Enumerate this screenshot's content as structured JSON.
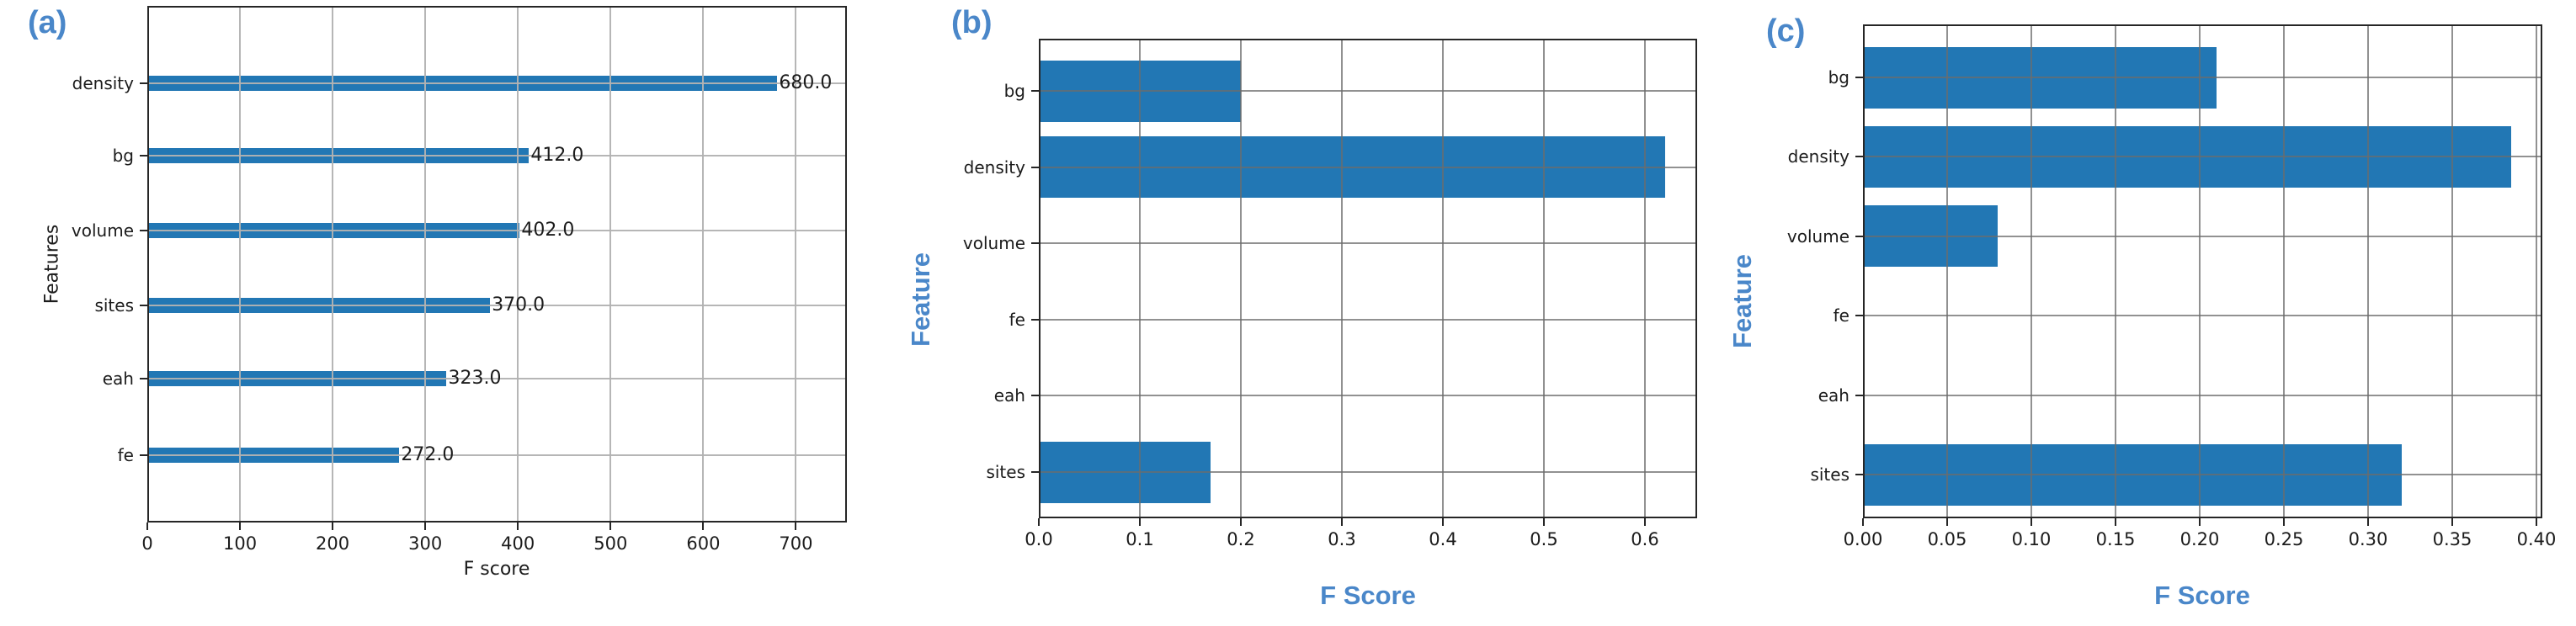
{
  "figure": {
    "background": "#ffffff",
    "colors": {
      "bar": "#2277b4",
      "accent_label": "#4a87c9",
      "axis_text": "#1c1c1c",
      "grid_a": "rgba(178,178,178,0.95)",
      "grid_bc": "rgba(108,108,108,0.75)"
    }
  },
  "chart_data": [
    {
      "id": "a",
      "type": "bar",
      "orientation": "horizontal",
      "panel_label": "(a)",
      "title": "",
      "xlabel": "F score",
      "ylabel": "Features",
      "categories": [
        "density",
        "bg",
        "volume",
        "sites",
        "eah",
        "fe"
      ],
      "values": [
        680,
        412,
        402,
        370,
        323,
        272
      ],
      "value_labels": [
        "680.0",
        "412.0",
        "402.0",
        "370.0",
        "323.0",
        "272.0"
      ],
      "x_ticks": [
        0,
        100,
        200,
        300,
        400,
        500,
        600,
        700
      ],
      "x_tick_labels": [
        "0",
        "100",
        "200",
        "300",
        "400",
        "500",
        "600",
        "700"
      ],
      "xlim": [
        0,
        755
      ],
      "grid": true,
      "legend": null
    },
    {
      "id": "b",
      "type": "bar",
      "orientation": "horizontal",
      "panel_label": "(b)",
      "title": "",
      "xlabel": "F Score",
      "ylabel": "Feature",
      "categories": [
        "bg",
        "density",
        "volume",
        "fe",
        "eah",
        "sites"
      ],
      "values": [
        0.2,
        0.62,
        0,
        0,
        0,
        0.17
      ],
      "value_labels": null,
      "x_ticks": [
        0.0,
        0.1,
        0.2,
        0.3,
        0.4,
        0.5,
        0.6
      ],
      "x_tick_labels": [
        "0.0",
        "0.1",
        "0.2",
        "0.3",
        "0.4",
        "0.5",
        "0.6"
      ],
      "xlim": [
        0,
        0.652
      ],
      "grid": true,
      "legend": null
    },
    {
      "id": "c",
      "type": "bar",
      "orientation": "horizontal",
      "panel_label": "(c)",
      "title": "",
      "xlabel": "F Score",
      "ylabel": "Feature",
      "categories": [
        "bg",
        "density",
        "volume",
        "fe",
        "eah",
        "sites"
      ],
      "values": [
        0.21,
        0.385,
        0.08,
        0,
        0,
        0.32
      ],
      "value_labels": null,
      "x_ticks": [
        0.0,
        0.05,
        0.1,
        0.15,
        0.2,
        0.25,
        0.3,
        0.35,
        0.4
      ],
      "x_tick_labels": [
        "0.00",
        "0.05",
        "0.10",
        "0.15",
        "0.20",
        "0.25",
        "0.30",
        "0.35",
        "0.40"
      ],
      "xlim": [
        0,
        0.4035
      ],
      "grid": true,
      "legend": null
    }
  ]
}
